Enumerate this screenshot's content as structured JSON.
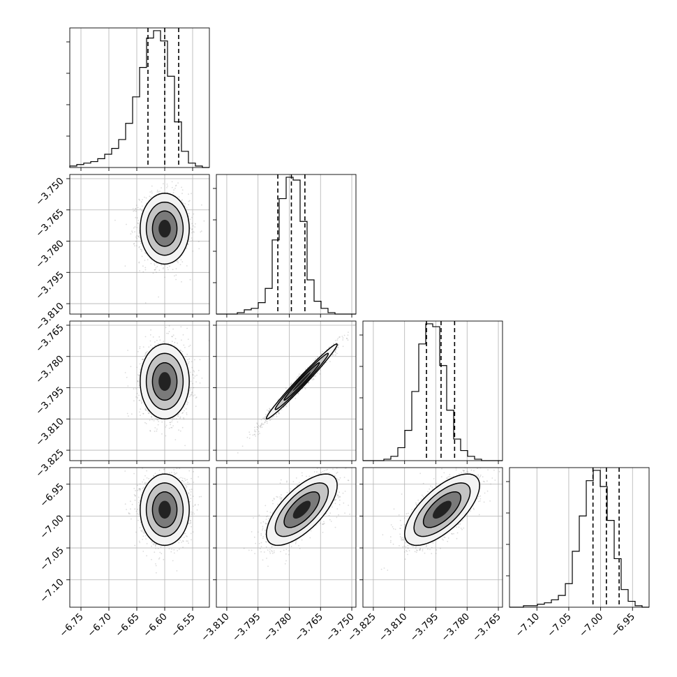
{
  "chart_data": {
    "type": "corner",
    "params": [
      {
        "range": [
          -6.77,
          -6.52
        ],
        "ticks": [
          -6.75,
          -6.7,
          -6.65,
          -6.6,
          -6.55
        ],
        "tick_labels": [
          "−6.75",
          "−6.70",
          "−6.65",
          "−6.60",
          "−6.55"
        ],
        "quantiles": [
          -6.63,
          -6.6,
          -6.575
        ],
        "hist": [
          1,
          2,
          3,
          4,
          6,
          9,
          13,
          19,
          30,
          48,
          68,
          88,
          93,
          86,
          62,
          31,
          11,
          3,
          1,
          0
        ]
      },
      {
        "range": [
          -3.815,
          -3.748
        ],
        "ticks": [
          -3.81,
          -3.795,
          -3.78,
          -3.765,
          -3.75
        ],
        "tick_labels": [
          "−3.810",
          "−3.795",
          "−3.780",
          "−3.765",
          "−3.750"
        ],
        "quantiles": [
          -3.7855,
          -3.779,
          -3.7725
        ],
        "hist": [
          0,
          0,
          0,
          1,
          3,
          4,
          8,
          18,
          52,
          81,
          96,
          94,
          65,
          24,
          9,
          4,
          1,
          0,
          0,
          0
        ]
      },
      {
        "range": [
          -3.83,
          -3.763
        ],
        "ticks": [
          -3.825,
          -3.81,
          -3.795,
          -3.78,
          -3.765
        ],
        "tick_labels": [
          "−3.825",
          "−3.810",
          "−3.795",
          "−3.780",
          "−3.765"
        ],
        "quantiles": [
          -3.7995,
          -3.7925,
          -3.786
        ],
        "hist": [
          0,
          0,
          0,
          1,
          3,
          9,
          21,
          48,
          81,
          95,
          93,
          66,
          35,
          15,
          7,
          3,
          1,
          0,
          0,
          0
        ]
      },
      {
        "range": [
          -7.143,
          -6.924
        ],
        "ticks": [
          -7.1,
          -7.05,
          -7.0,
          -6.95
        ],
        "tick_labels": [
          "−7.10",
          "−7.05",
          "−7.00",
          "−6.95"
        ],
        "quantiles": [
          -7.012,
          -6.991,
          -6.971
        ],
        "hist": [
          0,
          0,
          1,
          1,
          2,
          3,
          5,
          8,
          16,
          38,
          62,
          86,
          93,
          82,
          59,
          33,
          12,
          4,
          1,
          0
        ]
      }
    ],
    "pairs": [
      {
        "row": 1,
        "col": 0,
        "mean": [
          -6.6,
          -3.774
        ],
        "sd": [
          0.022,
          0.0085
        ],
        "corr": 0.0
      },
      {
        "row": 2,
        "col": 0,
        "mean": [
          -6.6,
          -3.792
        ],
        "sd": [
          0.022,
          0.009
        ],
        "corr": 0.0
      },
      {
        "row": 2,
        "col": 1,
        "mean": [
          -3.774,
          -3.792
        ],
        "sd": [
          0.0085,
          0.009
        ],
        "corr": 0.985
      },
      {
        "row": 3,
        "col": 0,
        "mean": [
          -6.6,
          -6.99
        ],
        "sd": [
          0.022,
          0.028
        ],
        "corr": 0.0
      },
      {
        "row": 3,
        "col": 1,
        "mean": [
          -3.774,
          -6.99
        ],
        "sd": [
          0.0085,
          0.028
        ],
        "corr": 0.68
      },
      {
        "row": 3,
        "col": 2,
        "mean": [
          -3.792,
          -6.99
        ],
        "sd": [
          0.009,
          0.028
        ],
        "corr": 0.68
      }
    ],
    "contour_levels_sigma": [
      0.5,
      1.0,
      1.5,
      2.0
    ],
    "grid": true,
    "colors": {
      "line": "#000000",
      "grid": "#b0b0b0",
      "points": "#7f7f7f"
    }
  }
}
